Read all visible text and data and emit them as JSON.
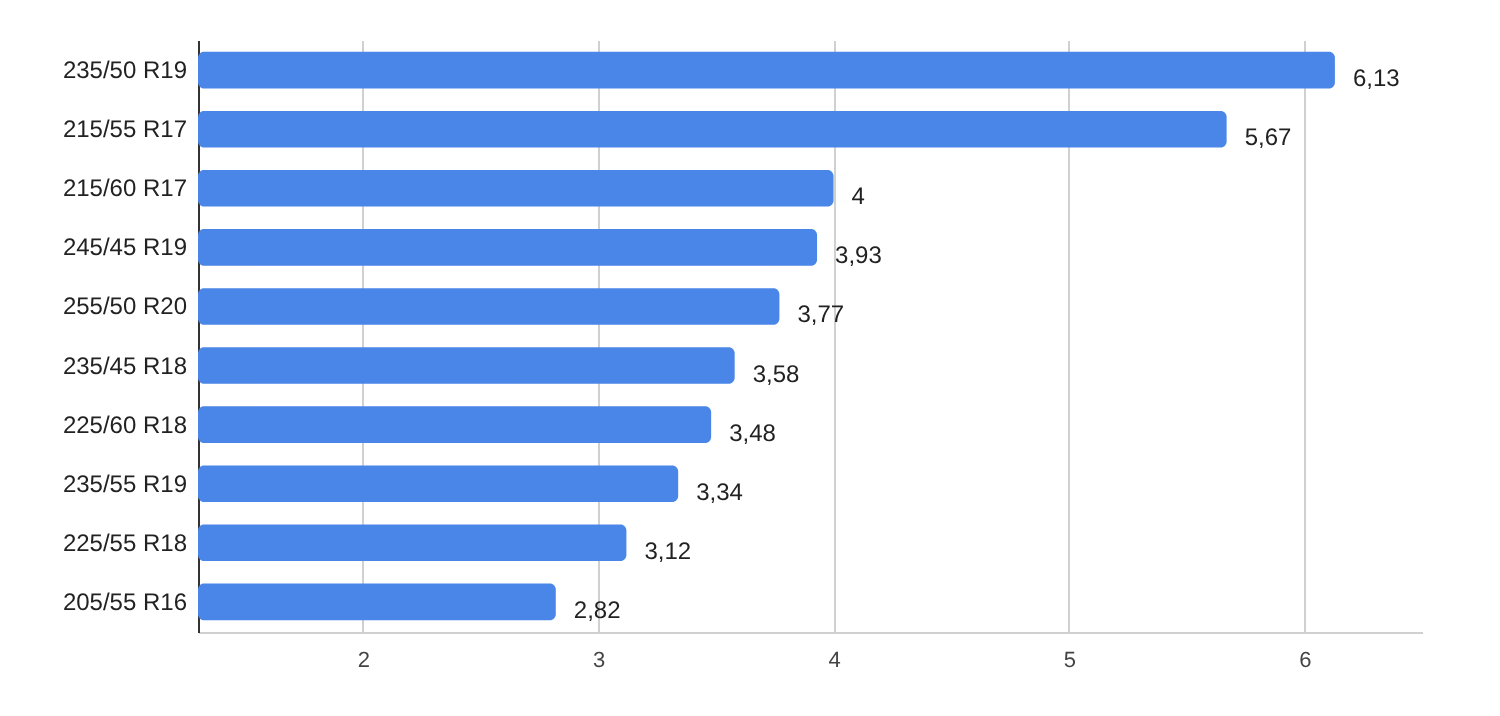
{
  "chart_data": {
    "type": "bar",
    "orientation": "horizontal",
    "categories": [
      "235/50 R19",
      "215/55 R17",
      "215/60 R17",
      "245/45 R19",
      "255/50 R20",
      "235/45 R18",
      "225/60 R18",
      "235/55 R19",
      "225/55 R18",
      "205/55 R16"
    ],
    "series": [
      {
        "color": "#4a86e8",
        "values": [
          6.13,
          5.67,
          4,
          3.93,
          3.77,
          3.58,
          3.48,
          3.34,
          3.12,
          2.82
        ],
        "value_labels": [
          "6,13",
          "5,67",
          "4",
          "3,93",
          "3,77",
          "3,58",
          "3,48",
          "3,34",
          "3,12",
          "2,82"
        ]
      }
    ],
    "xlim": [
      1.3,
      6.5
    ],
    "xticks": [
      2,
      3,
      4,
      5,
      6
    ],
    "grid": "x"
  }
}
